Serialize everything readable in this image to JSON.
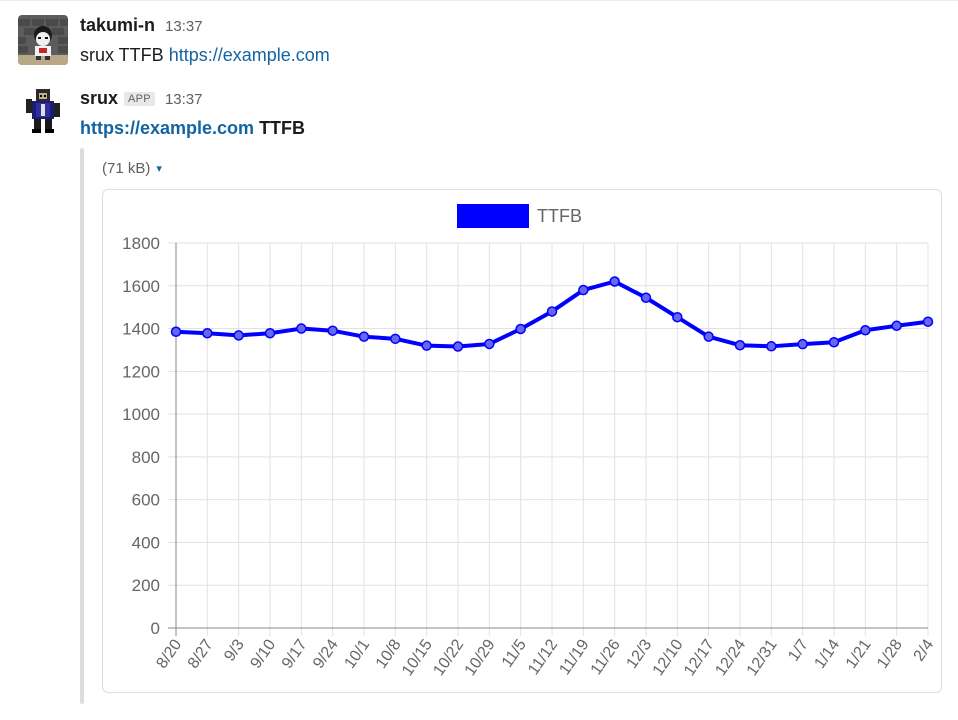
{
  "messages": [
    {
      "user": "takumi-n",
      "time": "13:37",
      "text_plain": "srux TTFB ",
      "text_link": "https://example.com"
    },
    {
      "user": "srux",
      "badge": "APP",
      "time": "13:37",
      "text_link": "https://example.com",
      "text_bold": "TTFB",
      "attachment": {
        "size": "(71 kB)",
        "caret": "▾"
      }
    }
  ],
  "colors": {
    "link": "#1264a3",
    "series": "#0000ff",
    "point_fill": "#6666ee"
  },
  "chart_data": {
    "type": "line",
    "title": "",
    "xlabel": "",
    "ylabel": "",
    "ylim": [
      0,
      1800
    ],
    "y_ticks": [
      0,
      200,
      400,
      600,
      800,
      1000,
      1200,
      1400,
      1600,
      1800
    ],
    "grid": true,
    "legend": "top",
    "categories": [
      "8/20",
      "8/27",
      "9/3",
      "9/10",
      "9/17",
      "9/24",
      "10/1",
      "10/8",
      "10/15",
      "10/22",
      "10/29",
      "11/5",
      "11/12",
      "11/19",
      "11/26",
      "12/3",
      "12/10",
      "12/17",
      "12/24",
      "12/31",
      "1/7",
      "1/14",
      "1/21",
      "1/28",
      "2/4"
    ],
    "series": [
      {
        "name": "TTFB",
        "values": [
          1385,
          1378,
          1368,
          1378,
          1400,
          1390,
          1362,
          1352,
          1320,
          1316,
          1328,
          1398,
          1480,
          1580,
          1620,
          1544,
          1453,
          1362,
          1322,
          1317,
          1327,
          1336,
          1392,
          1413,
          1432
        ]
      }
    ]
  }
}
